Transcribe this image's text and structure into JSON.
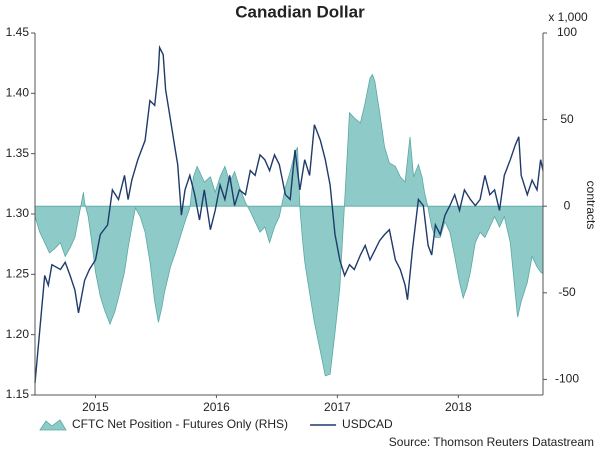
{
  "chart_data": {
    "type": "line",
    "title": "Canadian Dollar",
    "y2_unit": "x 1,000",
    "y2_label": "contracts",
    "source": "Source: Thomson Reuters Datastream",
    "xlim": [
      2015,
      2019.2
    ],
    "xticks": [
      {
        "value": 2015.5,
        "label": "2015"
      },
      {
        "value": 2016.5,
        "label": "2016"
      },
      {
        "value": 2017.5,
        "label": "2017"
      },
      {
        "value": 2018.5,
        "label": "2018"
      }
    ],
    "ylim": [
      1.15,
      1.45
    ],
    "yticks": [
      {
        "value": 1.15,
        "label": "1.15"
      },
      {
        "value": 1.2,
        "label": "1.20"
      },
      {
        "value": 1.25,
        "label": "1.25"
      },
      {
        "value": 1.3,
        "label": "1.30"
      },
      {
        "value": 1.35,
        "label": "1.35"
      },
      {
        "value": 1.4,
        "label": "1.40"
      },
      {
        "value": 1.45,
        "label": "1.45"
      }
    ],
    "y2lim": [
      -109,
      100
    ],
    "y2ticks": [
      -100,
      -50,
      0,
      50,
      100
    ],
    "series": [
      {
        "name": "CFTC Net Position - Futures Only (RHS)",
        "type": "area",
        "axis": "y2",
        "color": "#8ecbc8",
        "edge": "#5aa8a4",
        "x": [
          2015.0,
          2015.04,
          2015.08,
          2015.12,
          2015.17,
          2015.21,
          2015.25,
          2015.29,
          2015.33,
          2015.37,
          2015.4,
          2015.41,
          2015.44,
          2015.47,
          2015.5,
          2015.54,
          2015.58,
          2015.62,
          2015.66,
          2015.7,
          2015.74,
          2015.77,
          2015.8,
          2015.83,
          2015.87,
          2015.91,
          2015.95,
          2015.99,
          2016.02,
          2016.05,
          2016.07,
          2016.12,
          2016.16,
          2016.2,
          2016.24,
          2016.28,
          2016.31,
          2016.34,
          2016.36,
          2016.4,
          2016.45,
          2016.49,
          2016.53,
          2016.57,
          2016.61,
          2016.65,
          2016.69,
          2016.74,
          2016.78,
          2016.82,
          2016.86,
          2016.9,
          2016.94,
          2016.98,
          2017.02,
          2017.07,
          2017.11,
          2017.15,
          2017.17,
          2017.19,
          2017.21,
          2017.23,
          2017.27,
          2017.31,
          2017.36,
          2017.4,
          2017.44,
          2017.48,
          2017.52,
          2017.56,
          2017.6,
          2017.64,
          2017.69,
          2017.73,
          2017.77,
          2017.79,
          2017.81,
          2017.85,
          2017.89,
          2017.93,
          2017.98,
          2018.02,
          2018.06,
          2018.1,
          2018.13,
          2018.17,
          2018.2,
          2018.22,
          2018.25,
          2018.28,
          2018.31,
          2018.35,
          2018.39,
          2018.43,
          2018.47,
          2018.51,
          2018.54,
          2018.57,
          2018.6,
          2018.64,
          2018.68,
          2018.72,
          2018.76,
          2018.8,
          2018.84,
          2018.88,
          2018.93,
          2018.97,
          2018.99,
          2019.02,
          2019.07,
          2019.11,
          2019.15,
          2019.18,
          2019.2
        ],
        "values": [
          -6,
          -15,
          -21,
          -27,
          -24,
          -21,
          -29,
          -24,
          -18,
          -3,
          8,
          2,
          -6,
          -21,
          -38,
          -52,
          -61,
          -68,
          -61,
          -50,
          -38,
          -24,
          -12,
          -1,
          -6,
          -15,
          -32,
          -55,
          -67,
          -58,
          -50,
          -35,
          -27,
          -18,
          -9,
          -1,
          17,
          23,
          20,
          14,
          17,
          8,
          17,
          23,
          14,
          20,
          11,
          2,
          -3,
          -9,
          -15,
          -12,
          -21,
          -12,
          -6,
          11,
          20,
          31,
          34,
          -1,
          -18,
          -32,
          -50,
          -67,
          -84,
          -98,
          -97,
          -73,
          -47,
          2,
          54,
          51,
          48,
          60,
          74,
          76,
          72,
          54,
          34,
          25,
          23,
          17,
          14,
          40,
          17,
          24,
          17,
          8,
          -1,
          -12,
          -18,
          -18,
          -9,
          -15,
          -29,
          -44,
          -53,
          -47,
          -38,
          -21,
          -15,
          -18,
          -12,
          -6,
          -12,
          -6,
          -21,
          -50,
          -64,
          -55,
          -44,
          -29,
          -35,
          -38,
          -39
        ]
      },
      {
        "name": "USDCAD",
        "type": "line",
        "color": "#1f3a6b",
        "x": [
          2015.0,
          2015.04,
          2015.08,
          2015.11,
          2015.14,
          2015.21,
          2015.25,
          2015.29,
          2015.33,
          2015.36,
          2015.41,
          2015.45,
          2015.5,
          2015.54,
          2015.6,
          2015.64,
          2015.69,
          2015.74,
          2015.77,
          2015.8,
          2015.85,
          2015.91,
          2015.95,
          2015.99,
          2016.02,
          2016.03,
          2016.06,
          2016.08,
          2016.12,
          2016.16,
          2016.18,
          2016.21,
          2016.24,
          2016.28,
          2016.32,
          2016.36,
          2016.4,
          2016.45,
          2016.49,
          2016.53,
          2016.57,
          2016.61,
          2016.65,
          2016.69,
          2016.74,
          2016.78,
          2016.82,
          2016.86,
          2016.9,
          2016.94,
          2016.98,
          2017.02,
          2017.07,
          2017.11,
          2017.15,
          2017.19,
          2017.23,
          2017.27,
          2017.31,
          2017.36,
          2017.4,
          2017.44,
          2017.48,
          2017.52,
          2017.56,
          2017.6,
          2017.64,
          2017.69,
          2017.73,
          2017.77,
          2017.81,
          2017.85,
          2017.89,
          2017.93,
          2017.98,
          2018.02,
          2018.06,
          2018.08,
          2018.12,
          2018.17,
          2018.21,
          2018.25,
          2018.28,
          2018.31,
          2018.35,
          2018.39,
          2018.43,
          2018.47,
          2018.51,
          2018.55,
          2018.6,
          2018.64,
          2018.68,
          2018.72,
          2018.76,
          2018.8,
          2018.84,
          2018.88,
          2018.93,
          2018.97,
          2019.0,
          2019.02,
          2019.07,
          2019.11,
          2019.15,
          2019.18,
          2019.2
        ],
        "values": [
          1.16,
          1.204,
          1.249,
          1.241,
          1.258,
          1.254,
          1.26,
          1.249,
          1.237,
          1.218,
          1.245,
          1.254,
          1.262,
          1.283,
          1.291,
          1.32,
          1.312,
          1.332,
          1.312,
          1.328,
          1.345,
          1.361,
          1.394,
          1.39,
          1.419,
          1.438,
          1.432,
          1.403,
          1.378,
          1.353,
          1.341,
          1.299,
          1.32,
          1.332,
          1.316,
          1.295,
          1.32,
          1.287,
          1.303,
          1.324,
          1.312,
          1.332,
          1.307,
          1.32,
          1.316,
          1.336,
          1.332,
          1.349,
          1.345,
          1.336,
          1.349,
          1.341,
          1.316,
          1.312,
          1.353,
          1.32,
          1.345,
          1.332,
          1.374,
          1.361,
          1.345,
          1.324,
          1.283,
          1.262,
          1.249,
          1.258,
          1.254,
          1.266,
          1.274,
          1.262,
          1.27,
          1.278,
          1.283,
          1.287,
          1.262,
          1.254,
          1.241,
          1.229,
          1.27,
          1.312,
          1.307,
          1.274,
          1.266,
          1.291,
          1.283,
          1.299,
          1.307,
          1.316,
          1.303,
          1.32,
          1.312,
          1.307,
          1.312,
          1.332,
          1.316,
          1.32,
          1.303,
          1.332,
          1.345,
          1.357,
          1.364,
          1.332,
          1.316,
          1.328,
          1.32,
          1.345,
          1.336
        ]
      }
    ]
  }
}
